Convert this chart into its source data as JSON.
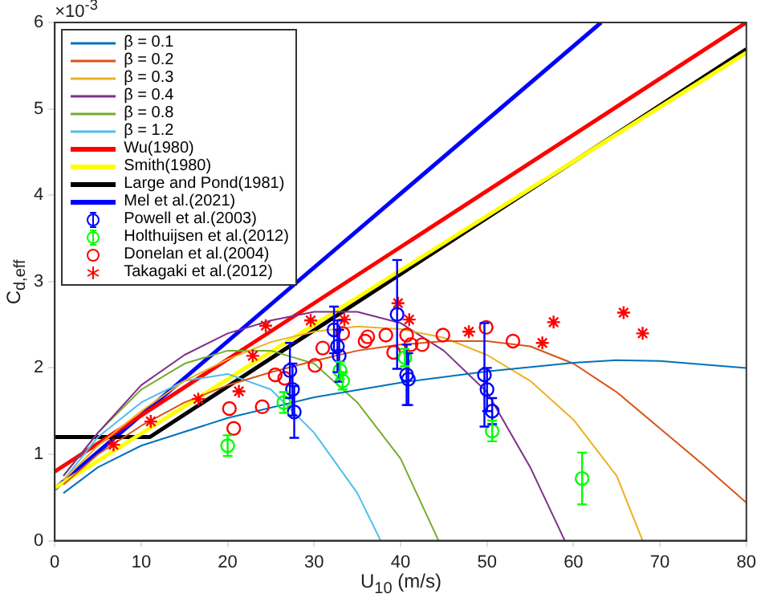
{
  "chart_data": {
    "type": "line",
    "xlabel": "U$_{10}$ (m/s)",
    "ylabel": "C$_{d,eff}$",
    "annotations": [
      "×10$^{-3}$"
    ],
    "xlim": [
      0,
      80
    ],
    "xticks": [
      0,
      10,
      20,
      30,
      40,
      50,
      60,
      70,
      80
    ],
    "ylim": [
      0,
      6
    ],
    "yticks": [
      0,
      1,
      2,
      3,
      4,
      5,
      6
    ],
    "grid": false,
    "legend": "top left",
    "series": [
      {
        "name": "β = 0.1",
        "color": "#0072bd",
        "x": [
          1,
          5,
          10,
          20,
          30,
          40,
          50,
          60,
          65,
          70,
          80
        ],
        "values": [
          0.55,
          0.85,
          1.1,
          1.42,
          1.66,
          1.83,
          1.96,
          2.06,
          2.09,
          2.08,
          2.0
        ]
      },
      {
        "name": "β = 0.2",
        "color": "#d95319",
        "x": [
          1,
          5,
          10,
          15,
          20,
          25,
          30,
          35,
          40,
          45,
          50,
          55,
          60,
          65,
          70,
          75,
          80
        ],
        "values": [
          0.65,
          1.0,
          1.33,
          1.6,
          1.8,
          1.95,
          2.08,
          2.2,
          2.27,
          2.31,
          2.31,
          2.25,
          2.05,
          1.72,
          1.3,
          0.88,
          0.44
        ]
      },
      {
        "name": "β = 0.3",
        "color": "#edb120",
        "x": [
          1,
          5,
          10,
          15,
          20,
          25,
          30,
          35,
          40,
          45,
          50,
          55,
          60,
          65,
          68
        ],
        "values": [
          0.7,
          1.1,
          1.5,
          1.85,
          2.1,
          2.3,
          2.42,
          2.48,
          2.45,
          2.35,
          2.15,
          1.85,
          1.4,
          0.75,
          0
        ]
      },
      {
        "name": "β = 0.4",
        "color": "#7e2f8e",
        "x": [
          1,
          5,
          10,
          15,
          20,
          25,
          30,
          35,
          40,
          45,
          50,
          55,
          59
        ],
        "values": [
          0.75,
          1.25,
          1.8,
          2.15,
          2.4,
          2.55,
          2.65,
          2.65,
          2.52,
          2.2,
          1.72,
          0.85,
          0
        ]
      },
      {
        "name": "β = 0.8",
        "color": "#77ac30",
        "x": [
          1,
          5,
          10,
          15,
          20,
          25,
          30,
          35,
          40,
          44.4
        ],
        "values": [
          0.75,
          1.25,
          1.75,
          2.05,
          2.2,
          2.2,
          2.05,
          1.6,
          0.95,
          0
        ]
      },
      {
        "name": "β = 1.2",
        "color": "#4dbeee",
        "x": [
          1,
          5,
          10,
          15,
          20,
          25,
          30,
          35,
          37.7
        ],
        "values": [
          0.7,
          1.2,
          1.6,
          1.85,
          1.93,
          1.75,
          1.25,
          0.55,
          0
        ]
      },
      {
        "name": "Wu(1980)",
        "color": "#ff0000",
        "x": [
          0,
          80
        ],
        "values": [
          0.8,
          6.0
        ]
      },
      {
        "name": "Smith(1980)",
        "color": "#ffff00",
        "x": [
          0,
          80
        ],
        "values": [
          0.61,
          5.65
        ]
      },
      {
        "name": "Large and Pond(1981)",
        "color": "#000000",
        "x": [
          0,
          11,
          80
        ],
        "values": [
          1.2,
          1.2,
          5.69
        ]
      },
      {
        "name": "Mel et al.(2021)",
        "color": "#0000ff",
        "x": [
          0,
          63.2
        ],
        "values": [
          0.6,
          6.0
        ]
      },
      {
        "name": "Powell et al.(2003)",
        "type": "scatter",
        "marker": "circle",
        "color": "#0000ff",
        "x": [
          27.2,
          27.5,
          27.7,
          32.3,
          32.7,
          32.9,
          39.6,
          40.7,
          40.9,
          49.7,
          50,
          50.6
        ],
        "values": [
          1.97,
          1.75,
          1.49,
          2.44,
          2.25,
          2.14,
          2.62,
          1.92,
          1.87,
          1.92,
          1.75,
          1.5
        ],
        "errors": [
          0.32,
          0.3,
          0.3,
          0.27,
          0.3,
          0.3,
          0.63,
          0.35,
          0.3,
          0.6,
          0.25,
          0.15
        ]
      },
      {
        "name": "Holthuijsen et al.(2012)",
        "type": "scatter",
        "marker": "circle",
        "color": "#00ff00",
        "x": [
          20,
          26.5,
          33,
          33.3,
          40.5,
          50.6,
          61
        ],
        "values": [
          1.1,
          1.6,
          1.97,
          1.85,
          2.12,
          1.27,
          0.72
        ],
        "errors": [
          0.12,
          0.12,
          0.1,
          0.1,
          0.1,
          0.12,
          0.3
        ]
      },
      {
        "name": "Donelan et al.(2004)",
        "type": "scatter",
        "marker": "circle",
        "color": "#ff0000",
        "x": [
          20.2,
          20.7,
          24,
          25.5,
          26.6,
          30.1,
          31,
          33.3,
          35.9,
          36.2,
          38.3,
          39.2,
          40.7,
          41.2,
          42.5,
          44.9,
          49.9,
          53
        ],
        "values": [
          1.53,
          1.3,
          1.55,
          1.92,
          1.88,
          2.03,
          2.23,
          2.4,
          2.31,
          2.36,
          2.38,
          2.18,
          2.38,
          2.27,
          2.27,
          2.38,
          2.47,
          2.31
        ]
      },
      {
        "name": "Takagaki et al.(2012)",
        "type": "scatter",
        "marker": "cross",
        "color": "#ff0000",
        "x": [
          6.8,
          11.1,
          16.6,
          21.3,
          22.9,
          24.4,
          29.6,
          33.5,
          39.7,
          41,
          47.9,
          56.4,
          57.7,
          65.8,
          68
        ],
        "values": [
          1.11,
          1.38,
          1.64,
          1.73,
          2.14,
          2.49,
          2.55,
          2.56,
          2.75,
          2.56,
          2.42,
          2.29,
          2.53,
          2.64,
          2.4
        ]
      }
    ]
  }
}
